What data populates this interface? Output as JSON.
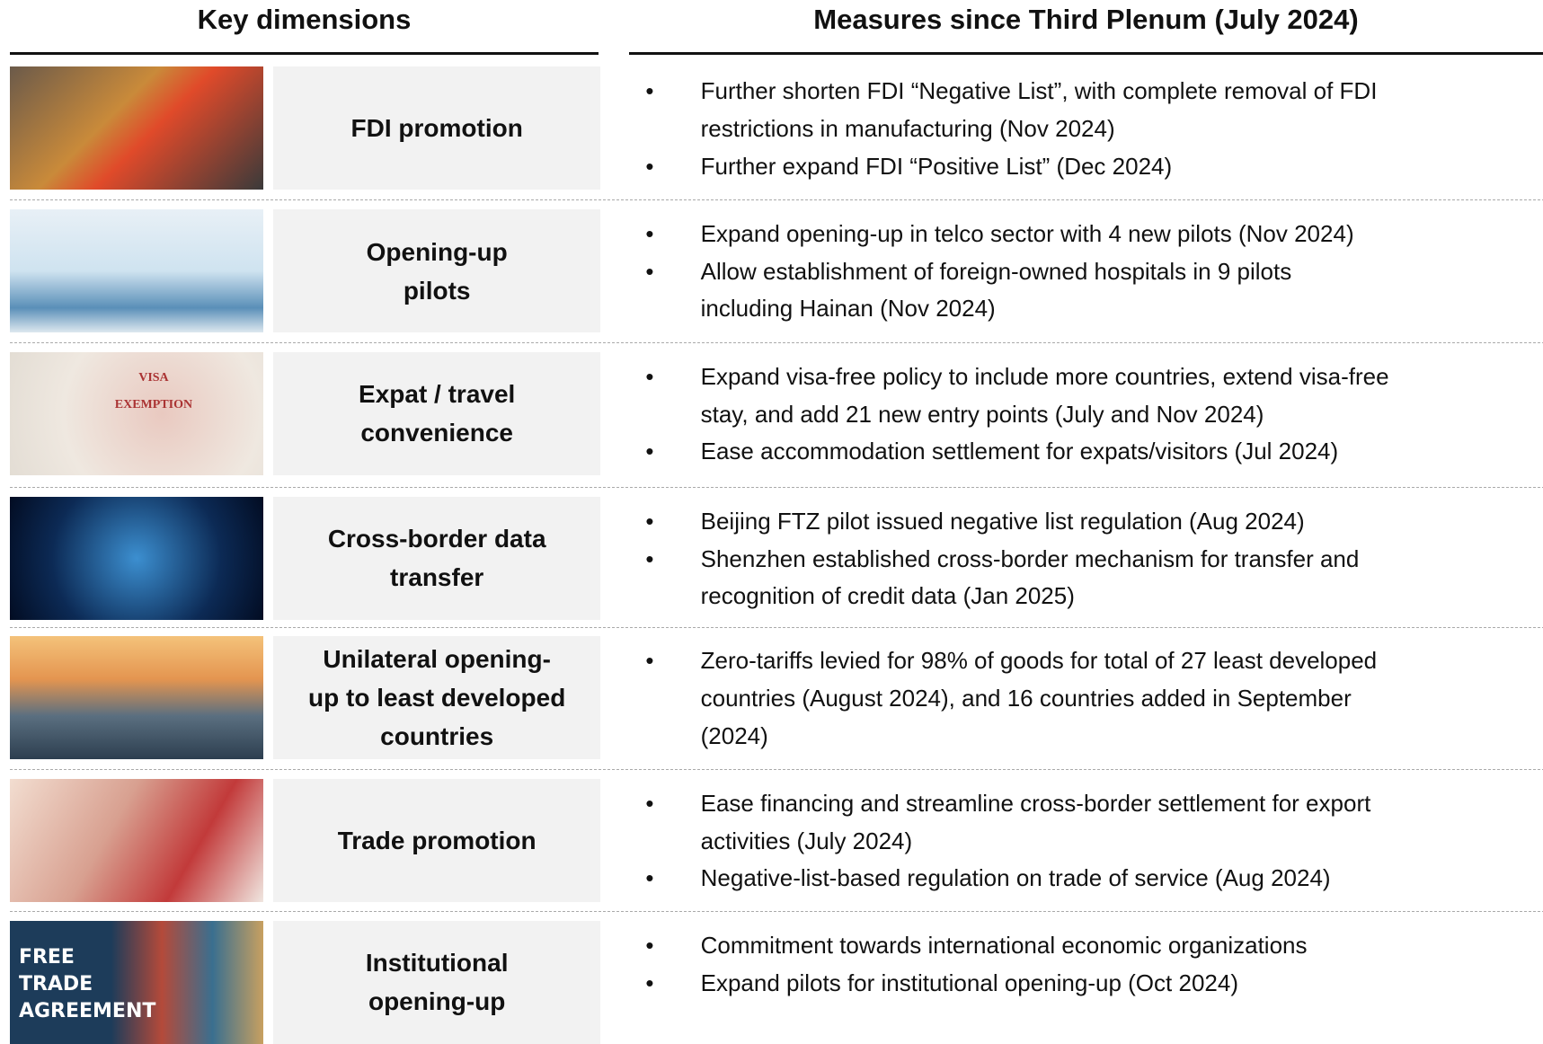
{
  "header": {
    "left": "Key dimensions",
    "right": "Measures since Third Plenum (July 2024)"
  },
  "rows": [
    {
      "label": [
        "FDI promotion"
      ],
      "bullets": [
        [
          "Further shorten FDI “Negative List”, with complete removal of FDI",
          "restrictions in manufacturing (Nov 2024)"
        ],
        [
          "Further expand FDI “Positive List” (Dec 2024)"
        ]
      ]
    },
    {
      "label": [
        "Opening-up",
        "pilots"
      ],
      "bullets": [
        [
          "Expand opening-up in telco sector with 4 new pilots (Nov 2024)"
        ],
        [
          "Allow establishment of foreign-owned hospitals in 9 pilots",
          "including Hainan (Nov 2024)"
        ]
      ]
    },
    {
      "label": [
        "Expat / travel",
        "convenience"
      ],
      "image_text": "VISA EXEMPTION",
      "bullets": [
        [
          "Expand visa-free policy to include more countries, extend visa-free",
          "stay, and add 21 new entry points (July and Nov 2024)"
        ],
        [
          "Ease accommodation settlement for expats/visitors (Jul 2024)"
        ]
      ]
    },
    {
      "label": [
        "Cross-border data",
        "transfer"
      ],
      "bullets": [
        [
          "Beijing FTZ pilot issued negative list regulation (Aug 2024)"
        ],
        [
          "Shenzhen established cross-border mechanism for transfer and",
          "recognition of credit data (Jan 2025)"
        ]
      ]
    },
    {
      "label": [
        "Unilateral opening-",
        "up to least developed",
        "countries"
      ],
      "bullets": [
        [
          "Zero-tariffs levied for 98% of goods for total of 27 least developed",
          "countries (August 2024), and 16 countries added in September",
          "(2024)"
        ]
      ]
    },
    {
      "label": [
        "Trade promotion"
      ],
      "bullets": [
        [
          "Ease financing and streamline cross-border settlement for export",
          "activities (July 2024)"
        ],
        [
          "Negative-list-based regulation on trade of service (Aug 2024)"
        ]
      ]
    },
    {
      "label": [
        "Institutional",
        "opening-up"
      ],
      "image_text": "FREE TRADE AGREEMENT",
      "bullets": [
        [
          "Commitment towards international economic organizations"
        ],
        [
          "Expand pilots for institutional opening-up (Oct 2024)"
        ]
      ]
    }
  ]
}
